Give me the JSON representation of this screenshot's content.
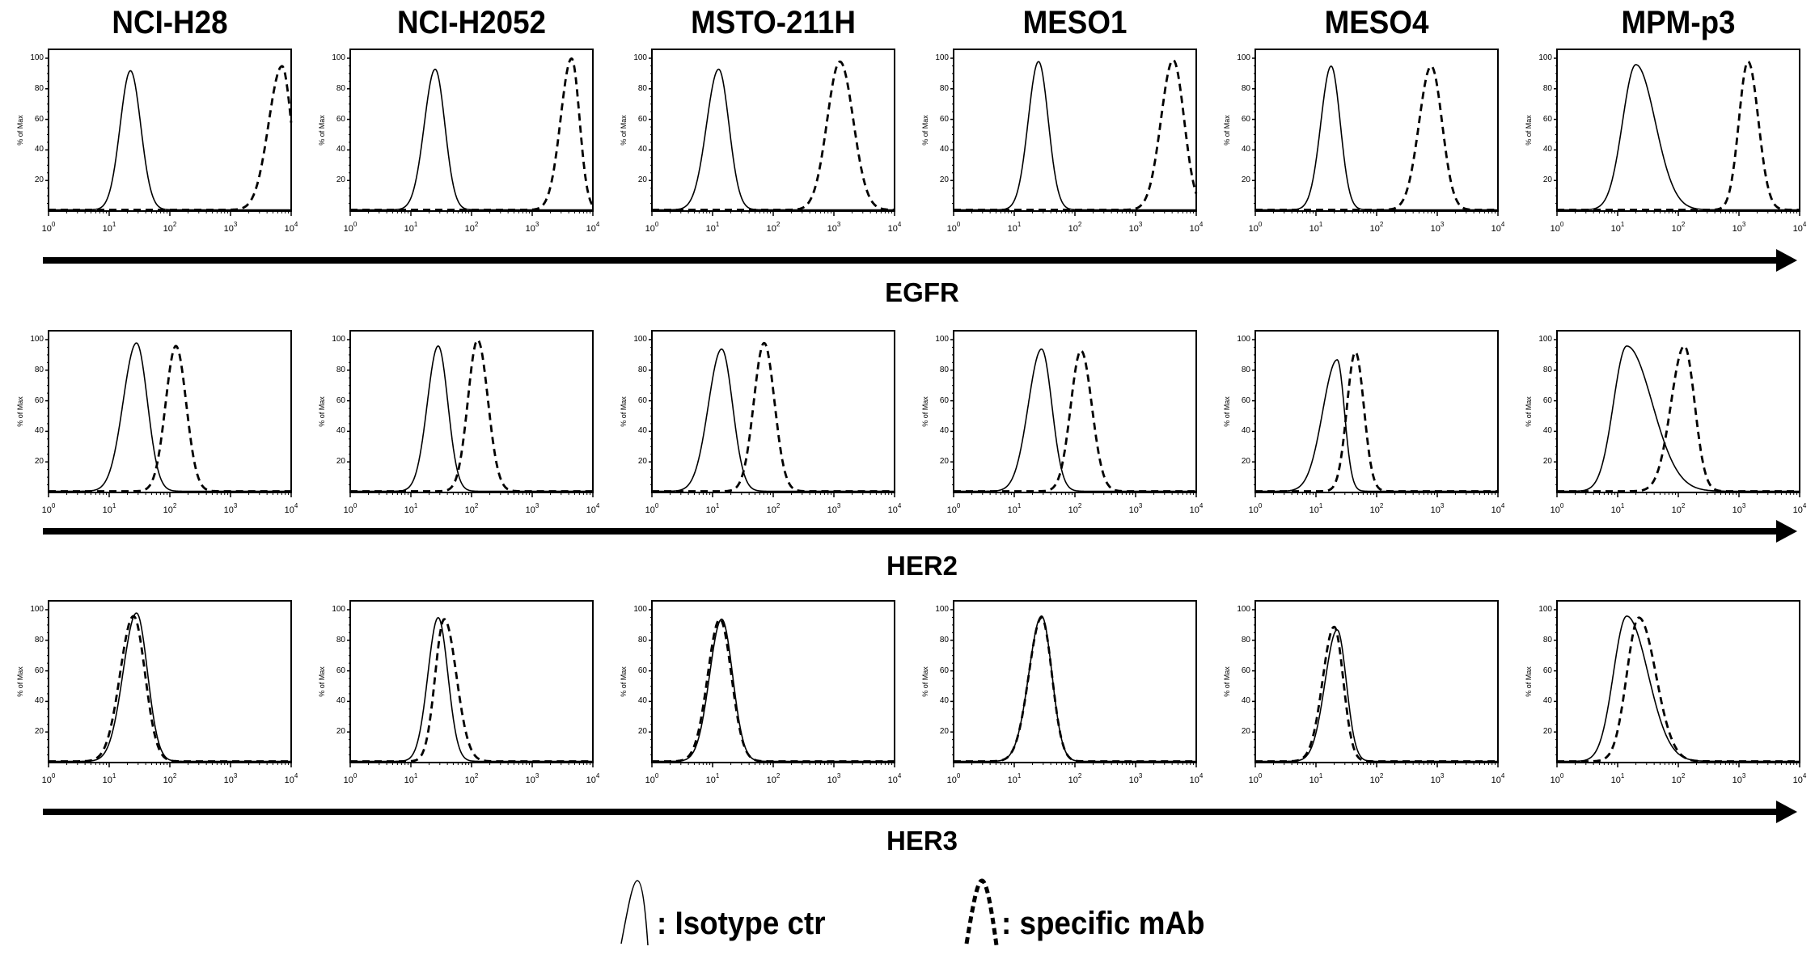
{
  "chart_data": {
    "type": "histogram-grid",
    "title": "",
    "xlabel_scale": "log10 fluorescence intensity",
    "ylabel": "% of Max",
    "x_ticks": [
      "0",
      "1",
      "2",
      "3",
      "4"
    ],
    "x_tick_base": "10",
    "xlim_log10": [
      0,
      4
    ],
    "y_ticks": [
      "20",
      "40",
      "60",
      "80",
      "100"
    ],
    "ylim": [
      0,
      105
    ],
    "columns": [
      "NCI-H28",
      "NCI-H2052",
      "MSTO-211H",
      "MESO1",
      "MESO4",
      "MPM-p3"
    ],
    "rows": [
      {
        "marker": "EGFR",
        "panels": [
          {
            "isotype": {
              "peak_log10": 1.35,
              "max_pct": 91,
              "sd_left": 0.17,
              "sd_right": 0.17
            },
            "specific": {
              "peak_log10": 3.85,
              "max_pct": 94,
              "sd_left": 0.22,
              "sd_right": 0.15
            }
          },
          {
            "isotype": {
              "peak_log10": 1.4,
              "max_pct": 92,
              "sd_left": 0.18,
              "sd_right": 0.16
            },
            "specific": {
              "peak_log10": 3.65,
              "max_pct": 99,
              "sd_left": 0.18,
              "sd_right": 0.13
            }
          },
          {
            "isotype": {
              "peak_log10": 1.1,
              "max_pct": 92,
              "sd_left": 0.2,
              "sd_right": 0.17
            },
            "specific": {
              "peak_log10": 3.1,
              "max_pct": 97,
              "sd_left": 0.21,
              "sd_right": 0.22
            }
          },
          {
            "isotype": {
              "peak_log10": 1.4,
              "max_pct": 97,
              "sd_left": 0.17,
              "sd_right": 0.16
            },
            "specific": {
              "peak_log10": 3.62,
              "max_pct": 98,
              "sd_left": 0.2,
              "sd_right": 0.18
            }
          },
          {
            "isotype": {
              "peak_log10": 1.25,
              "max_pct": 94,
              "sd_left": 0.17,
              "sd_right": 0.15
            },
            "specific": {
              "peak_log10": 2.9,
              "max_pct": 94,
              "sd_left": 0.2,
              "sd_right": 0.18
            }
          },
          {
            "isotype": {
              "peak_log10": 1.3,
              "max_pct": 95,
              "sd_left": 0.22,
              "sd_right": 0.32
            },
            "specific": {
              "peak_log10": 3.15,
              "max_pct": 97,
              "sd_left": 0.15,
              "sd_right": 0.17
            }
          }
        ]
      },
      {
        "marker": "HER2",
        "panels": [
          {
            "isotype": {
              "peak_log10": 1.45,
              "max_pct": 97,
              "sd_left": 0.22,
              "sd_right": 0.18
            },
            "specific": {
              "peak_log10": 2.1,
              "max_pct": 95,
              "sd_left": 0.17,
              "sd_right": 0.17
            }
          },
          {
            "isotype": {
              "peak_log10": 1.45,
              "max_pct": 95,
              "sd_left": 0.18,
              "sd_right": 0.16
            },
            "specific": {
              "peak_log10": 2.1,
              "max_pct": 99,
              "sd_left": 0.16,
              "sd_right": 0.17
            }
          },
          {
            "isotype": {
              "peak_log10": 1.15,
              "max_pct": 93,
              "sd_left": 0.22,
              "sd_right": 0.18
            },
            "specific": {
              "peak_log10": 1.85,
              "max_pct": 97,
              "sd_left": 0.17,
              "sd_right": 0.17
            }
          },
          {
            "isotype": {
              "peak_log10": 1.45,
              "max_pct": 93,
              "sd_left": 0.22,
              "sd_right": 0.17
            },
            "specific": {
              "peak_log10": 2.1,
              "max_pct": 92,
              "sd_left": 0.17,
              "sd_right": 0.18
            }
          },
          {
            "isotype": {
              "peak_log10": 1.35,
              "max_pct": 86,
              "sd_left": 0.24,
              "sd_right": 0.12
            },
            "specific": {
              "peak_log10": 1.65,
              "max_pct": 91,
              "sd_left": 0.14,
              "sd_right": 0.14
            }
          },
          {
            "isotype": {
              "peak_log10": 1.15,
              "max_pct": 95,
              "sd_left": 0.22,
              "sd_right": 0.42
            },
            "specific": {
              "peak_log10": 2.1,
              "max_pct": 95,
              "sd_left": 0.22,
              "sd_right": 0.17
            }
          }
        ]
      },
      {
        "marker": "HER3",
        "panels": [
          {
            "isotype": {
              "peak_log10": 1.45,
              "max_pct": 97,
              "sd_left": 0.22,
              "sd_right": 0.18
            },
            "specific": {
              "peak_log10": 1.4,
              "max_pct": 95,
              "sd_left": 0.22,
              "sd_right": 0.19
            }
          },
          {
            "isotype": {
              "peak_log10": 1.45,
              "max_pct": 94,
              "sd_left": 0.17,
              "sd_right": 0.16
            },
            "specific": {
              "peak_log10": 1.55,
              "max_pct": 93,
              "sd_left": 0.15,
              "sd_right": 0.2
            }
          },
          {
            "isotype": {
              "peak_log10": 1.15,
              "max_pct": 93,
              "sd_left": 0.2,
              "sd_right": 0.18
            },
            "specific": {
              "peak_log10": 1.12,
              "max_pct": 93,
              "sd_left": 0.2,
              "sd_right": 0.19
            }
          },
          {
            "isotype": {
              "peak_log10": 1.45,
              "max_pct": 95,
              "sd_left": 0.21,
              "sd_right": 0.17
            },
            "specific": {
              "peak_log10": 1.45,
              "max_pct": 94,
              "sd_left": 0.21,
              "sd_right": 0.17
            }
          },
          {
            "isotype": {
              "peak_log10": 1.35,
              "max_pct": 86,
              "sd_left": 0.2,
              "sd_right": 0.15
            },
            "specific": {
              "peak_log10": 1.3,
              "max_pct": 88,
              "sd_left": 0.19,
              "sd_right": 0.15
            }
          },
          {
            "isotype": {
              "peak_log10": 1.15,
              "max_pct": 95,
              "sd_left": 0.22,
              "sd_right": 0.35
            },
            "specific": {
              "peak_log10": 1.35,
              "max_pct": 94,
              "sd_left": 0.2,
              "sd_right": 0.28
            }
          }
        ]
      }
    ],
    "legend": {
      "placement": "bottom-center",
      "entries": [
        {
          "label": ": Isotype ctr",
          "style": "solid"
        },
        {
          "label": ": specific mAb",
          "style": "dashed"
        }
      ]
    }
  },
  "colors": {
    "line": "#000000",
    "background": "#ffffff"
  }
}
